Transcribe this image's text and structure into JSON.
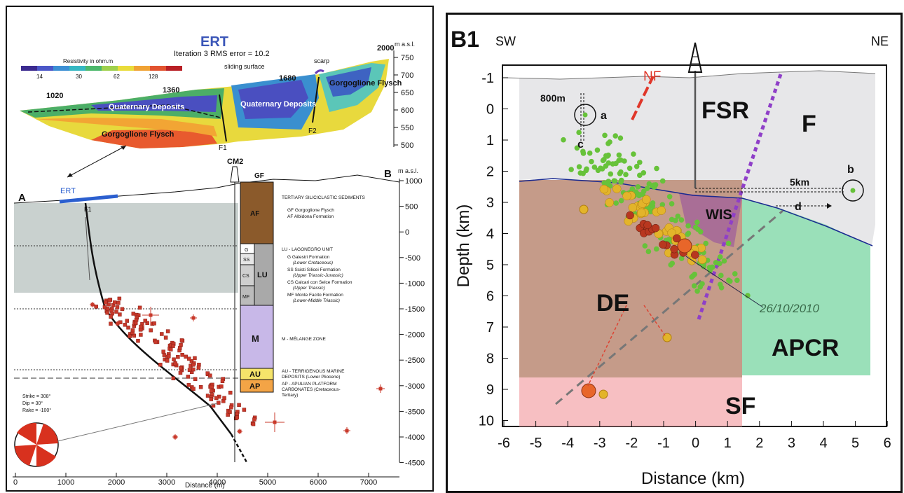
{
  "left_panel": {
    "ert": {
      "title": "ERT",
      "iteration": "Iteration 3 RMS error = 10.2",
      "resistivity_label": "Resistivity in ohm.m",
      "scale_ticks": [
        "14",
        "30",
        "62",
        "128"
      ],
      "scale_colors": [
        "#3b2a8f",
        "#4b57c8",
        "#3c8fd4",
        "#35b7c2",
        "#4cb86b",
        "#9fd04c",
        "#e9dc3a",
        "#f0a234",
        "#e2532f",
        "#b81f25"
      ],
      "positions": [
        "1020",
        "1360",
        "1680",
        "2000"
      ],
      "sliding_surface": "sliding surface",
      "scarp": "scarp",
      "labels": [
        "Quaternary Deposits",
        "Quaternary Deposits",
        "Gorgoglione Flysch",
        "Gorgoglione Flysch"
      ],
      "faults": [
        "F1",
        "F2"
      ],
      "masl": "m a.s.l.",
      "y_ticks": [
        "750",
        "700",
        "650",
        "600",
        "550",
        "500"
      ]
    },
    "section": {
      "point_a": "A",
      "point_b": "B",
      "ert_label": "ERT",
      "fault": "F1",
      "well": "CM2",
      "masl": "m a.s.l.",
      "y_ticks": [
        "1000",
        "500",
        "0",
        "-500",
        "-1000",
        "-1500",
        "-2000",
        "-2500",
        "-3000",
        "-3500",
        "-4000",
        "-4500"
      ],
      "x_ticks": [
        "0",
        "1000",
        "2000",
        "3000",
        "4000",
        "5000",
        "6000",
        "7000"
      ],
      "x_label": "Distance (m)",
      "focal": {
        "strike": "Strike = 308°",
        "dip": "Dip = 30°",
        "rake": "Rake = -100°"
      }
    },
    "column_units": [
      "GF",
      "AF",
      "G",
      "SS",
      "CS",
      "LU",
      "MF",
      "M",
      "AU",
      "AP"
    ],
    "legend": {
      "tertiary": "TERTIARY SILICICLASTIC SEDIMENTS",
      "gf": "GF  Gorgoglione Flysch",
      "af": "AF  Albidona Formation",
      "lu": "LU - LAGONEGRO UNIT",
      "g1": "G  Galestri Formation",
      "g2": "(Lower Cretaceous)",
      "ss1": "SS  Scisti Silicei Formation",
      "ss2": "(Upper Triassic-Jurassic)",
      "cs1": "CS  Calcari con Selce Formation",
      "cs2": "(Upper Triassic)",
      "mf1": "MF  Monte Facito Formation",
      "mf2": "(Lower-Middle Triassic)",
      "m": "M - MÉLANGE ZONE",
      "au1": "AU - TERRIGENOUS MARINE",
      "au2": "DEPOSITS (Lower Pliocene)",
      "ap1": "AP - APULIAN PLATFORM",
      "ap2": "CARBONATES (Cretaceous-",
      "ap3": "Tertiary)"
    }
  },
  "right_panel": {
    "title": "B1",
    "sw": "SW",
    "ne": "NE",
    "nf": "NF",
    "fsr": "FSR",
    "f": "F",
    "wis": "WIS",
    "de": "DE",
    "apcr": "APCR",
    "sf": "SF",
    "date": "26/10/2010",
    "dist_800m": "800m",
    "dist_5km": "5km",
    "point_a": "a",
    "point_b": "b",
    "point_c": "c",
    "point_d": "d",
    "y_label": "Depth (km)",
    "x_label": "Distance (km)",
    "x_ticks": [
      "-6",
      "-5",
      "-4",
      "-3",
      "-2",
      "-1",
      "0",
      "1",
      "2",
      "3",
      "4",
      "5",
      "6"
    ],
    "y_ticks": [
      "-1",
      "0",
      "1",
      "2",
      "3",
      "4",
      "5",
      "6",
      "7",
      "8",
      "9",
      "10"
    ]
  }
}
